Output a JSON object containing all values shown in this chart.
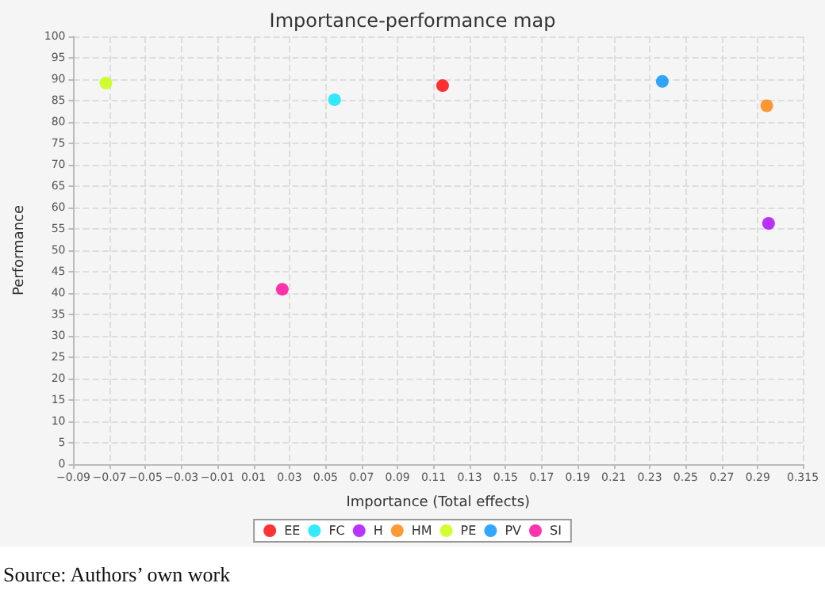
{
  "chart_data": {
    "type": "scatter",
    "title": "Importance-performance map",
    "xlabel": "Importance (Total effects)",
    "ylabel": "Performance",
    "series": [
      {
        "name": "EE",
        "color": "#ff0000",
        "x": [
          0.115
        ],
        "values": [
          88.5
        ]
      },
      {
        "name": "FC",
        "color": "#00e5ff",
        "x": [
          0.055
        ],
        "values": [
          85.2
        ]
      },
      {
        "name": "H",
        "color": "#aa00ff",
        "x": [
          0.296
        ],
        "values": [
          56.3
        ]
      },
      {
        "name": "HM",
        "color": "#ff7f00",
        "x": [
          0.295
        ],
        "values": [
          83.8
        ]
      },
      {
        "name": "PE",
        "color": "#c6ff00",
        "x": [
          -0.072
        ],
        "values": [
          89.1
        ]
      },
      {
        "name": "PV",
        "color": "#0091ff",
        "x": [
          0.237
        ],
        "values": [
          89.5
        ]
      },
      {
        "name": "SI",
        "color": "#ff0099",
        "x": [
          0.026
        ],
        "values": [
          40.9
        ]
      }
    ],
    "xlim": [
      -0.09,
      0.315
    ],
    "xticks": [
      -0.09,
      -0.07,
      -0.05,
      -0.03,
      -0.01,
      0.01,
      0.03,
      0.05,
      0.07,
      0.09,
      0.11,
      0.13,
      0.15,
      0.17,
      0.19,
      0.21,
      0.23,
      0.25,
      0.27,
      0.29,
      0.315
    ],
    "ylim": [
      0,
      100
    ],
    "yticks": [
      0,
      5,
      10,
      15,
      20,
      25,
      30,
      35,
      40,
      45,
      50,
      55,
      60,
      65,
      70,
      75,
      80,
      85,
      90,
      95,
      100
    ],
    "grid": true,
    "legend": "bottom",
    "marker": "circle",
    "annotations": [
      "Source: Authors’ own work"
    ]
  }
}
